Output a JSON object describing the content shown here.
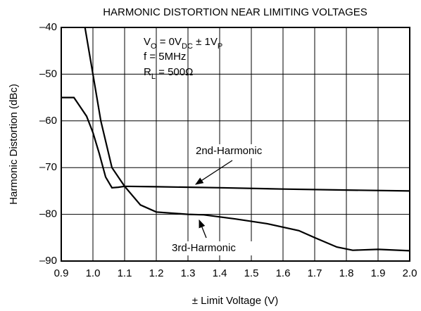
{
  "chart_data": {
    "type": "line",
    "title": "HARMONIC DISTORTION NEAR LIMITING VOLTAGES",
    "x_label": "± Limit Voltage (V)",
    "y_label": "Harmonic Distortion (dBc)",
    "annotations": [
      [
        "V",
        "O",
        " = 0V",
        "DC",
        " ± 1V",
        "P"
      ],
      [
        "f = 5MHz"
      ],
      [
        "R",
        "L",
        " = 500Ω"
      ]
    ],
    "series": [
      {
        "name": "2nd-Harmonic",
        "color": "#000000",
        "x": [
          0.9,
          0.94,
          0.96,
          0.98,
          1.0,
          1.02,
          1.04,
          1.06,
          1.08,
          1.1,
          1.2,
          1.4,
          1.6,
          1.8,
          2.0
        ],
        "values": [
          -55,
          -55,
          -57,
          -59,
          -62.5,
          -67,
          -72,
          -74.3,
          -74.2,
          -74,
          -74.1,
          -74.3,
          -74.6,
          -74.8,
          -75
        ]
      },
      {
        "name": "3rd-Harmonic",
        "color": "#000000",
        "x": [
          0.975,
          1.0,
          1.025,
          1.06,
          1.1,
          1.15,
          1.2,
          1.3,
          1.35,
          1.45,
          1.55,
          1.65,
          1.7,
          1.77,
          1.82,
          1.9,
          2.0
        ],
        "values": [
          -40,
          -50,
          -60,
          -70,
          -74,
          -78,
          -79.5,
          -80,
          -80.1,
          -81,
          -82,
          -83.5,
          -85,
          -87,
          -87.7,
          -87.5,
          -87.8
        ]
      }
    ],
    "xlim": [
      0.9,
      2.0
    ],
    "xticks": [
      0.9,
      {
        "value": 1,
        "label": "1.0"
      },
      1.1,
      1.2,
      1.3,
      1.4,
      1.5,
      1.6,
      1.7,
      1.8,
      1.9,
      {
        "value": 2,
        "label": "2.0"
      }
    ],
    "ylim": [
      -90,
      -40
    ],
    "yticks": [
      {
        "value": -40,
        "label": "–40"
      },
      {
        "value": -50,
        "label": "–50"
      },
      {
        "value": -60,
        "label": "–60"
      },
      {
        "value": -70,
        "label": "–70"
      },
      {
        "value": -80,
        "label": "–80"
      },
      {
        "value": -90,
        "label": "–90"
      }
    ],
    "grid": true
  }
}
